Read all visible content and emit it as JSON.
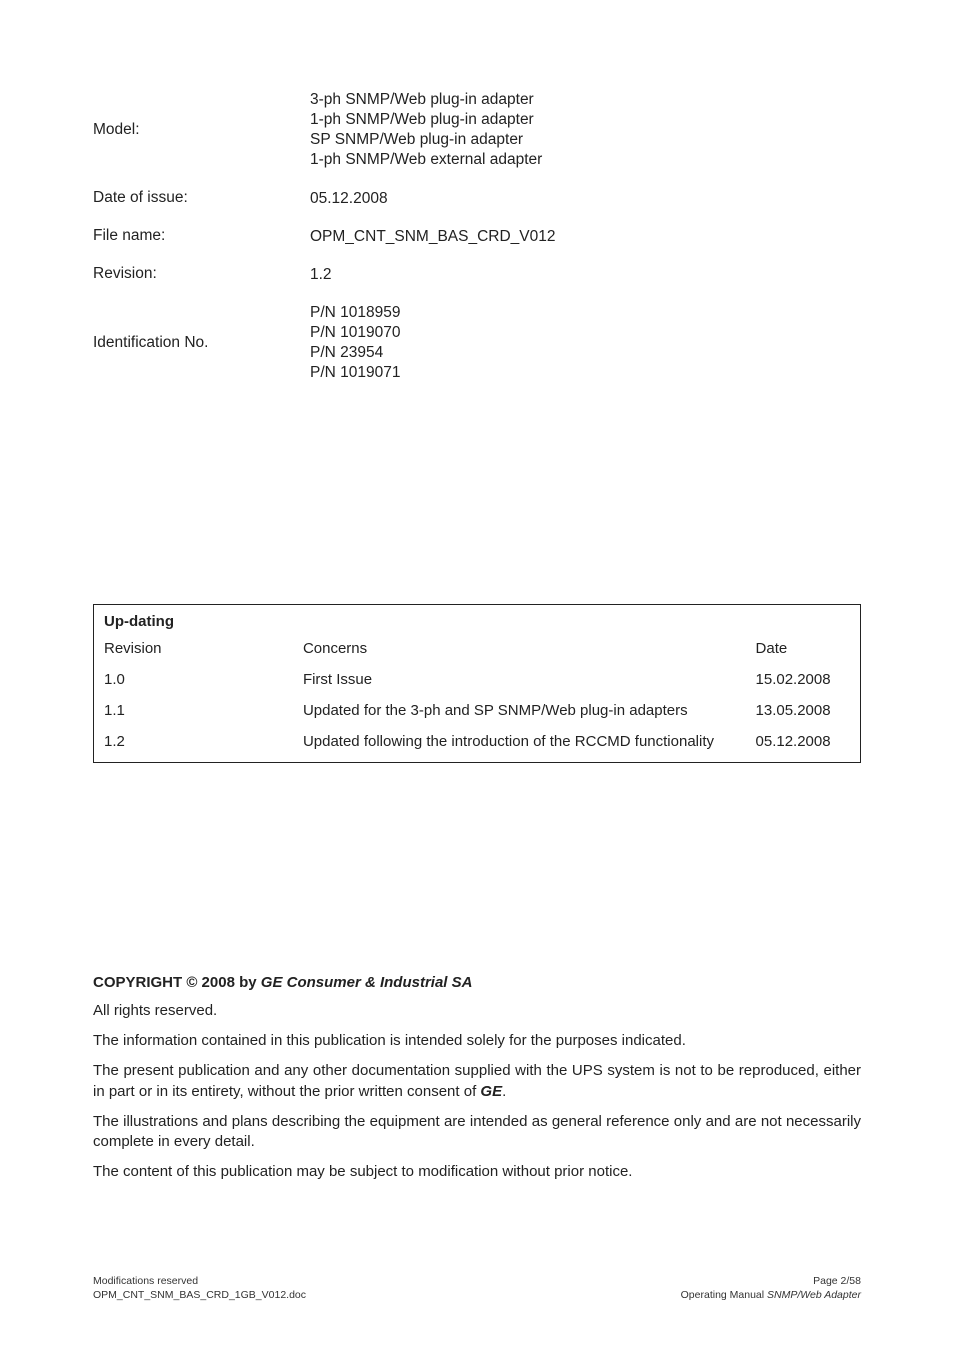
{
  "meta": {
    "rows": [
      {
        "label": "Model:",
        "values": [
          "3-ph SNMP/Web plug-in adapter",
          "1-ph SNMP/Web plug-in adapter",
          "SP SNMP/Web plug-in adapter",
          "1-ph SNMP/Web external adapter"
        ]
      },
      {
        "label": "Date of issue:",
        "values": [
          "05.12.2008"
        ]
      },
      {
        "label": "File name:",
        "values": [
          "OPM_CNT_SNM_BAS_CRD_V012"
        ]
      },
      {
        "label": "Revision:",
        "values": [
          "1.2"
        ]
      },
      {
        "label": "Identification No.",
        "values": [
          "P/N 1018959",
          "P/N 1019070",
          "P/N 23954",
          "P/N 1019071"
        ]
      }
    ]
  },
  "updating": {
    "title": "Up-dating",
    "headers": {
      "revision": "Revision",
      "concerns": "Concerns",
      "date": "Date"
    },
    "rows": [
      {
        "rev": "1.0",
        "concerns": "First Issue",
        "date": "15.02.2008"
      },
      {
        "rev": "1.1",
        "concerns": "Updated for the 3-ph and SP SNMP/Web plug-in adapters",
        "date": "13.05.2008"
      },
      {
        "rev": "1.2",
        "concerns": "Updated following the introduction of the RCCMD functionality",
        "date": "05.12.2008"
      }
    ]
  },
  "copyright": {
    "prefix": "COPYRIGHT © 2008 by ",
    "company": "GE Consumer & Industrial SA",
    "p1": "All rights reserved.",
    "p2": "The information contained in this publication is intended solely for the purposes indicated.",
    "p3a": "The present publication and any other documentation supplied with the UPS system is not to be reproduced, either in part or in its entirety, without the prior written consent of ",
    "p3b": "GE",
    "p3c": ".",
    "p4": "The illustrations and plans describing the equipment are intended as general reference only and are not necessarily complete in every detail.",
    "p5": "The content of this publication may be subject to modification without prior notice."
  },
  "footer": {
    "left1": "Modifications reserved",
    "left2": "OPM_CNT_SNM_BAS_CRD_1GB_V012.doc",
    "right1": "Page 2/58",
    "right2a": "Operating Manual ",
    "right2b": "SNMP/Web Adapter"
  }
}
